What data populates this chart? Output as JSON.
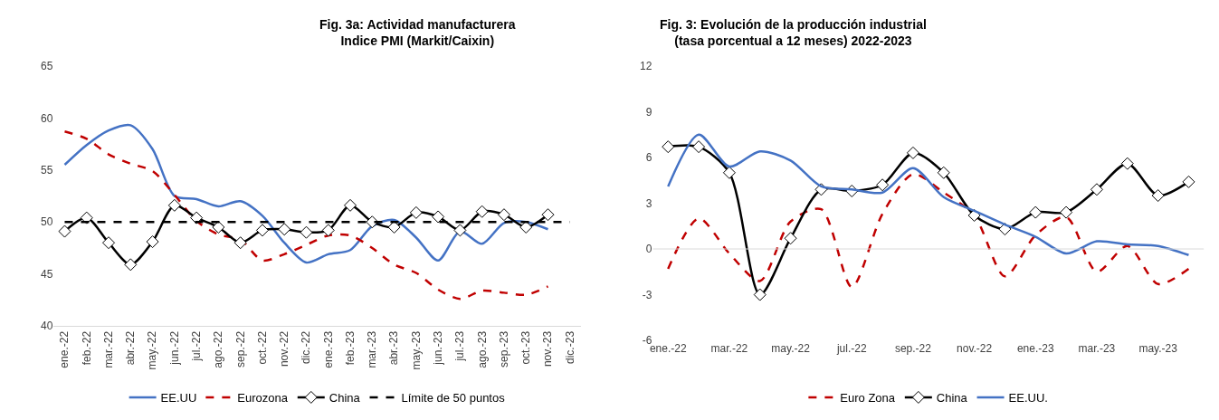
{
  "chart_data": [
    {
      "type": "line",
      "title": "Fig. 3a: Actividad manufacturera\nIndice PMI (Markit/Caixin)",
      "categories": [
        "ene.-22",
        "feb.-22",
        "mar.-22",
        "abr.-22",
        "may.-22",
        "jun.-22",
        "jul.-22",
        "ago.-22",
        "sep.-22",
        "oct.-22",
        "nov.-22",
        "dic.-22",
        "ene.-23",
        "feb.-23",
        "mar.-23",
        "abr.-23",
        "may.-23",
        "jun.-23",
        "jul.-23",
        "ago.-23",
        "sep.-23",
        "oct.-23",
        "nov.-23",
        "dic.-23"
      ],
      "series": [
        {
          "name": "EE.UU",
          "color": "#4472c4",
          "line_style": "solid",
          "marker": "none",
          "values": [
            55.5,
            57.4,
            58.8,
            59.3,
            57.0,
            52.5,
            52.2,
            51.5,
            52.0,
            50.6,
            48.0,
            46.1,
            46.9,
            47.3,
            49.6,
            50.2,
            48.5,
            46.3,
            49.1,
            47.9,
            49.9,
            50.0,
            49.3,
            null
          ]
        },
        {
          "name": "Eurozona",
          "color": "#c00000",
          "line_style": "dashed",
          "marker": "none",
          "values": [
            58.7,
            58.0,
            56.5,
            55.6,
            54.9,
            52.6,
            50.1,
            48.8,
            48.3,
            46.3,
            46.9,
            47.8,
            48.7,
            48.7,
            47.5,
            45.9,
            45.1,
            43.5,
            42.6,
            43.4,
            43.2,
            43.0,
            43.8,
            null
          ]
        },
        {
          "name": "China",
          "color": "#000000",
          "line_style": "solid",
          "marker": "diamond",
          "values": [
            49.1,
            50.4,
            48.0,
            45.9,
            48.1,
            51.6,
            50.4,
            49.5,
            48.0,
            49.2,
            49.3,
            49.0,
            49.2,
            51.6,
            50.0,
            49.5,
            50.9,
            50.5,
            49.2,
            51.0,
            50.7,
            49.5,
            50.7,
            null
          ]
        }
      ],
      "ref_lines": [
        {
          "axis": "y",
          "value": 50,
          "label": "Límite de 50 puntos",
          "color": "#000000",
          "line_style": "dashed"
        }
      ],
      "ylim": [
        40,
        65
      ],
      "yticks": [
        40,
        45,
        50,
        55,
        60,
        65
      ],
      "legend": "bottom"
    },
    {
      "type": "line",
      "title": "Fig. 3: Evolución de la producción industrial\n(tasa porcentual a 12 meses) 2022-2023",
      "categories": [
        "ene.-22",
        null,
        "mar.-22",
        null,
        "may.-22",
        null,
        "jul.-22",
        null,
        "sep.-22",
        null,
        "nov.-22",
        null,
        "ene.-23",
        null,
        "mar.-23",
        null,
        "may.-23",
        null
      ],
      "series": [
        {
          "name": "Euro Zona",
          "color": "#c00000",
          "line_style": "dashed",
          "marker": "none",
          "values": [
            -1.3,
            2.0,
            -0.3,
            -2.1,
            1.8,
            2.6,
            -2.5,
            2.3,
            4.9,
            3.7,
            2.2,
            -1.8,
            0.9,
            2.1,
            -1.5,
            0.2,
            -2.3,
            -1.3
          ]
        },
        {
          "name": "China",
          "color": "#000000",
          "line_style": "solid",
          "marker": "diamond",
          "values": [
            6.7,
            6.7,
            5.0,
            -3.0,
            0.7,
            3.9,
            3.8,
            4.2,
            6.3,
            5.0,
            2.2,
            1.3,
            2.4,
            2.4,
            3.9,
            5.6,
            3.5,
            4.4
          ]
        },
        {
          "name": "EE.UU.",
          "color": "#4472c4",
          "line_style": "solid",
          "marker": "none",
          "values": [
            4.1,
            7.5,
            5.4,
            6.4,
            5.8,
            4.1,
            3.9,
            3.7,
            5.3,
            3.4,
            2.5,
            1.6,
            0.8,
            -0.3,
            0.5,
            0.3,
            0.2,
            -0.4
          ]
        }
      ],
      "ref_lines": [
        {
          "axis": "y",
          "value": 0,
          "color": "#d9d9d9",
          "line_style": "solid"
        }
      ],
      "ylim": [
        -6,
        12
      ],
      "yticks": [
        -6,
        -3,
        0,
        3,
        6,
        9,
        12
      ],
      "legend": "bottom"
    }
  ]
}
